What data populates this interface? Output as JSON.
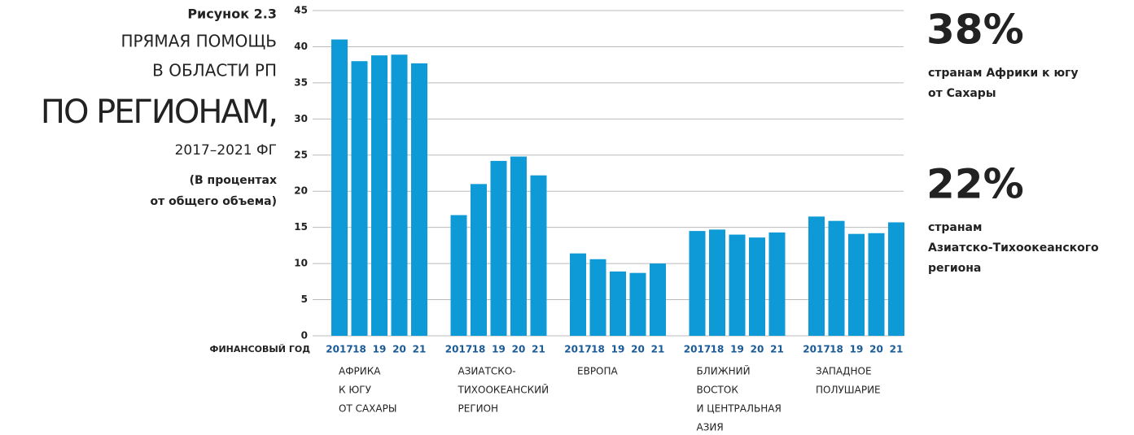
{
  "chart_data": {
    "type": "bar",
    "figure_label": "Рисунок 2.3",
    "title_lines": [
      "ПРЯМАЯ ПОМОЩЬ",
      "В ОБЛАСТИ РП"
    ],
    "title_main": "ПО РЕГИОНАМ,",
    "subtitle": "2017–2021 ФГ",
    "units_lines": [
      "(В процентах",
      "от общего объема)"
    ],
    "x_label": "ФИНАНСОВЫЙ ГОД",
    "categories": [
      "2017",
      "18",
      "19",
      "20",
      "21"
    ],
    "color": "#0e9ad7",
    "series": [
      {
        "name": [
          "АФРИКА",
          "К ЮГУ",
          "ОТ САХАРЫ"
        ],
        "values": [
          41,
          38,
          38.8,
          38.9,
          37.7
        ]
      },
      {
        "name": [
          "АЗИАТСКО-",
          "ТИХООКЕАНСКИЙ",
          "РЕГИОН"
        ],
        "values": [
          16.7,
          21,
          24.2,
          24.8,
          22.2
        ]
      },
      {
        "name": [
          "ЕВРОПА"
        ],
        "values": [
          11.4,
          10.6,
          8.9,
          8.7,
          10
        ]
      },
      {
        "name": [
          "БЛИЖНИЙ",
          "ВОСТОК",
          "И ЦЕНТРАЛЬНАЯ",
          "АЗИЯ"
        ],
        "values": [
          14.5,
          14.7,
          14,
          13.6,
          14.3
        ]
      },
      {
        "name": [
          "ЗАПАДНОЕ",
          "ПОЛУШАРИЕ"
        ],
        "values": [
          16.5,
          15.9,
          14.1,
          14.2,
          15.7
        ]
      }
    ],
    "ylim": [
      0,
      45
    ],
    "yticks": [
      0,
      5,
      10,
      15,
      20,
      25,
      30,
      35,
      40,
      45
    ],
    "grid": true,
    "annotations": [
      {
        "value_label": "38%",
        "text_lines": [
          "странам Африки к югу",
          "от Сахары"
        ]
      },
      {
        "value_label": "22%",
        "text_lines": [
          "странам",
          "Азиатско-Тихоокеанского",
          "региона"
        ]
      }
    ]
  }
}
